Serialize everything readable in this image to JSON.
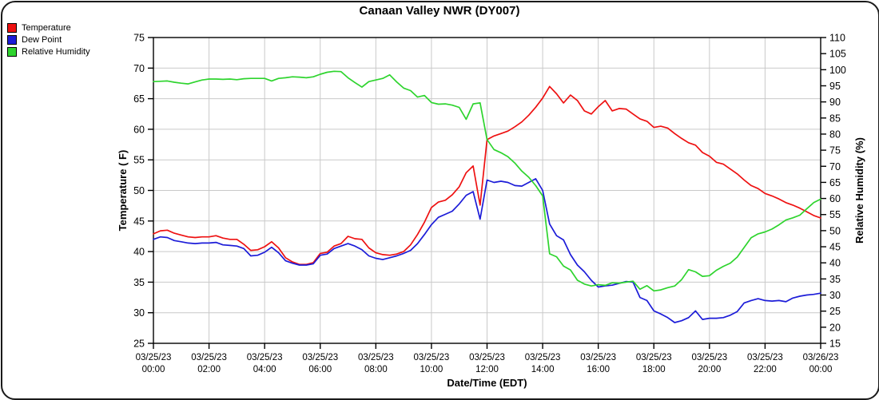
{
  "title": "Canaan Valley NWR (DY007)",
  "chart_data": {
    "type": "line",
    "title": "Canaan Valley NWR (DY007)",
    "xlabel": "Date/Time (EDT)",
    "grid": true,
    "legend_position": "top-left",
    "axes": {
      "left": {
        "label": "Temperature ( F)",
        "min": 25,
        "max": 75,
        "tick_step": 5
      },
      "right": {
        "label": "Relative Humidity (%)",
        "min": 15,
        "max": 110,
        "tick_step": 5
      },
      "x": {
        "min_hours": 0,
        "max_hours": 24,
        "tick_step_hours": 2,
        "tick_labels": [
          {
            "date": "03/25/23",
            "time": "00:00"
          },
          {
            "date": "03/25/23",
            "time": "02:00"
          },
          {
            "date": "03/25/23",
            "time": "04:00"
          },
          {
            "date": "03/25/23",
            "time": "06:00"
          },
          {
            "date": "03/25/23",
            "time": "08:00"
          },
          {
            "date": "03/25/23",
            "time": "10:00"
          },
          {
            "date": "03/25/23",
            "time": "12:00"
          },
          {
            "date": "03/25/23",
            "time": "14:00"
          },
          {
            "date": "03/25/23",
            "time": "16:00"
          },
          {
            "date": "03/25/23",
            "time": "18:00"
          },
          {
            "date": "03/25/23",
            "time": "20:00"
          },
          {
            "date": "03/25/23",
            "time": "22:00"
          },
          {
            "date": "03/26/23",
            "time": "00:00"
          }
        ]
      }
    },
    "x_start_hours": 0,
    "x_step_hours": 0.25,
    "series": [
      {
        "name": "Temperature",
        "axis": "left",
        "color": "#ee1111",
        "values": [
          42.9,
          43.4,
          43.5,
          43.0,
          42.7,
          42.4,
          42.3,
          42.4,
          42.4,
          42.6,
          42.2,
          42.0,
          42.0,
          41.2,
          40.2,
          40.3,
          40.8,
          41.6,
          40.6,
          39.0,
          38.3,
          37.9,
          37.9,
          38.2,
          39.7,
          39.9,
          40.9,
          41.3,
          42.5,
          42.1,
          42.0,
          40.6,
          39.8,
          39.5,
          39.4,
          39.6,
          40.0,
          41.1,
          42.8,
          44.8,
          47.2,
          48.1,
          48.4,
          49.3,
          50.6,
          52.9,
          54.0,
          47.6,
          58.3,
          58.9,
          59.3,
          59.7,
          60.4,
          61.2,
          62.3,
          63.6,
          65.1,
          67.0,
          65.8,
          64.3,
          65.6,
          64.7,
          63.0,
          62.5,
          63.7,
          64.7,
          63.0,
          63.4,
          63.3,
          62.5,
          61.7,
          61.3,
          60.3,
          60.5,
          60.2,
          59.3,
          58.5,
          57.8,
          57.4,
          56.2,
          55.6,
          54.6,
          54.3,
          53.5,
          52.7,
          51.7,
          50.8,
          50.3,
          49.5,
          49.1,
          48.6,
          48.0,
          47.6,
          47.1,
          46.5,
          45.9,
          45.5
        ]
      },
      {
        "name": "Dew Point",
        "axis": "left",
        "color": "#1c1cd8",
        "values": [
          42.0,
          42.4,
          42.3,
          41.8,
          41.6,
          41.4,
          41.3,
          41.4,
          41.4,
          41.5,
          41.1,
          41.0,
          40.9,
          40.5,
          39.3,
          39.4,
          39.9,
          40.7,
          39.8,
          38.5,
          38.1,
          37.8,
          37.8,
          38.0,
          39.4,
          39.6,
          40.5,
          40.9,
          41.3,
          40.9,
          40.3,
          39.3,
          38.9,
          38.7,
          39.0,
          39.3,
          39.7,
          40.2,
          41.3,
          42.8,
          44.4,
          45.6,
          46.1,
          46.6,
          47.8,
          49.2,
          49.8,
          45.3,
          51.7,
          51.3,
          51.5,
          51.3,
          50.8,
          50.7,
          51.3,
          51.9,
          50.0,
          44.5,
          42.6,
          41.9,
          39.5,
          37.8,
          36.7,
          35.3,
          34.2,
          34.4,
          34.5,
          34.8,
          35.1,
          35.0,
          32.5,
          32.0,
          30.3,
          29.8,
          29.2,
          28.4,
          28.7,
          29.2,
          30.3,
          28.9,
          29.1,
          29.1,
          29.2,
          29.6,
          30.2,
          31.6,
          32.0,
          32.3,
          32.0,
          31.9,
          32.0,
          31.8,
          32.4,
          32.7,
          32.9,
          33.0,
          33.2
        ]
      },
      {
        "name": "Relative Humidity",
        "axis": "right",
        "color": "#2ed42e",
        "values": [
          96.3,
          96.4,
          96.5,
          96.1,
          95.8,
          95.6,
          96.2,
          96.8,
          97.1,
          97.1,
          97.0,
          97.1,
          96.9,
          97.2,
          97.3,
          97.3,
          97.3,
          96.5,
          97.3,
          97.5,
          97.8,
          97.7,
          97.5,
          97.8,
          98.6,
          99.2,
          99.5,
          99.4,
          97.5,
          96.0,
          94.6,
          96.3,
          96.8,
          97.3,
          98.4,
          96.2,
          94.3,
          93.5,
          91.5,
          92.0,
          89.8,
          89.3,
          89.4,
          89.0,
          88.3,
          84.6,
          89.4,
          89.7,
          78.3,
          75.2,
          74.2,
          73.0,
          71.0,
          68.5,
          66.6,
          64.0,
          60.8,
          42.8,
          41.9,
          39.0,
          37.8,
          34.6,
          33.4,
          32.8,
          33.2,
          33.0,
          33.8,
          33.7,
          34.0,
          34.3,
          31.8,
          32.9,
          31.3,
          31.6,
          32.3,
          32.8,
          34.8,
          37.9,
          37.2,
          35.8,
          36.0,
          37.7,
          38.9,
          39.9,
          41.8,
          44.8,
          47.8,
          49.0,
          49.6,
          50.5,
          51.8,
          53.3,
          54.0,
          54.8,
          56.8,
          58.7,
          59.8
        ]
      }
    ],
    "style": {
      "grid_color": "#c9c9c9",
      "frame_color": "#000000",
      "background": "#ffffff"
    }
  }
}
